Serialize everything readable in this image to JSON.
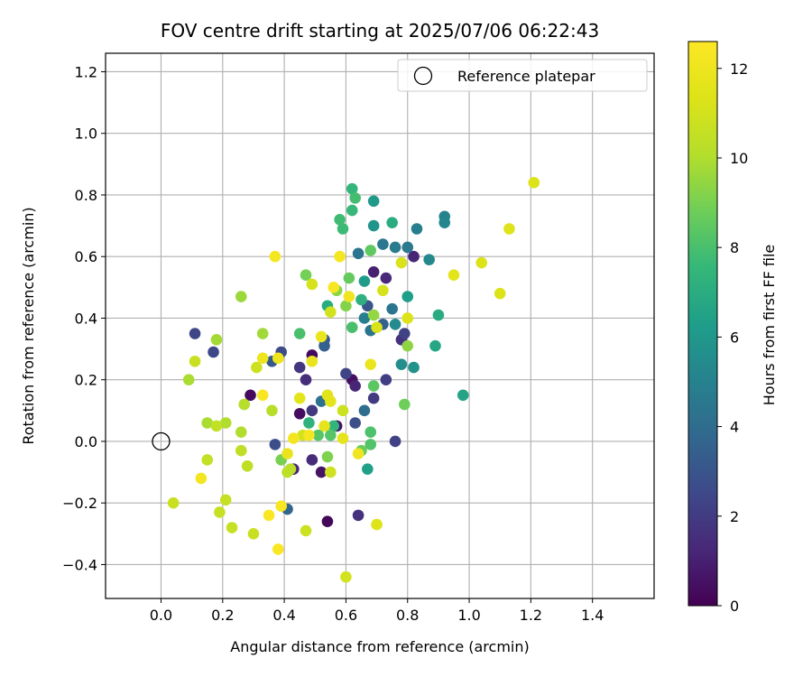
{
  "chart_data": {
    "type": "scatter",
    "title": "FOV centre drift starting at 2025/07/06 06:22:43",
    "xlabel": "Angular distance from reference (arcmin)",
    "ylabel": "Rotation from reference (arcmin)",
    "xlim": [
      -0.18,
      1.6
    ],
    "ylim": [
      -0.51,
      1.26
    ],
    "xticks": [
      0.0,
      0.2,
      0.4,
      0.6,
      0.8,
      1.0,
      1.2,
      1.4
    ],
    "xtick_labels": [
      "0.0",
      "0.2",
      "0.4",
      "0.6",
      "0.8",
      "1.0",
      "1.2",
      "1.4"
    ],
    "yticks": [
      -0.4,
      -0.2,
      0.0,
      0.2,
      0.4,
      0.6,
      0.8,
      1.0,
      1.2
    ],
    "ytick_labels": [
      "−0.4",
      "−0.2",
      "0.0",
      "0.2",
      "0.4",
      "0.6",
      "0.8",
      "1.0",
      "1.2"
    ],
    "grid": true,
    "legend": {
      "position": "top-right",
      "entries": [
        "Reference platepar"
      ]
    },
    "reference_point": {
      "x": 0.0,
      "y": 0.0,
      "marker": "open-circle",
      "label": "Reference platepar"
    },
    "colorbar": {
      "label": "Hours from first FF file",
      "range": [
        0,
        12.6
      ],
      "ticks": [
        0,
        2,
        4,
        6,
        8,
        10,
        12
      ],
      "tick_labels": [
        "0",
        "2",
        "4",
        "6",
        "8",
        "10",
        "12"
      ],
      "colormap": "viridis"
    },
    "points": [
      {
        "x": 0.29,
        "y": 0.15,
        "c": 0.3
      },
      {
        "x": 0.49,
        "y": 0.28,
        "c": 0.3
      },
      {
        "x": 0.54,
        "y": -0.26,
        "c": 0.2
      },
      {
        "x": 0.45,
        "y": 0.09,
        "c": 0.4
      },
      {
        "x": 0.62,
        "y": 0.2,
        "c": 0.5
      },
      {
        "x": 0.57,
        "y": 0.05,
        "c": 0.6
      },
      {
        "x": 0.52,
        "y": -0.1,
        "c": 0.6
      },
      {
        "x": 0.69,
        "y": 0.55,
        "c": 1.0
      },
      {
        "x": 0.82,
        "y": 0.6,
        "c": 1.2
      },
      {
        "x": 0.63,
        "y": 0.18,
        "c": 1.2
      },
      {
        "x": 0.73,
        "y": 0.53,
        "c": 1.3
      },
      {
        "x": 0.43,
        "y": -0.09,
        "c": 1.3
      },
      {
        "x": 0.49,
        "y": -0.06,
        "c": 1.4
      },
      {
        "x": 0.47,
        "y": 0.2,
        "c": 1.5
      },
      {
        "x": 0.64,
        "y": -0.24,
        "c": 1.6
      },
      {
        "x": 0.78,
        "y": 0.33,
        "c": 1.6
      },
      {
        "x": 0.45,
        "y": 0.24,
        "c": 1.8
      },
      {
        "x": 0.49,
        "y": 0.1,
        "c": 1.9
      },
      {
        "x": 0.69,
        "y": 0.14,
        "c": 2.0
      },
      {
        "x": 0.73,
        "y": 0.2,
        "c": 2.1
      },
      {
        "x": 0.76,
        "y": 0.0,
        "c": 2.2
      },
      {
        "x": 0.79,
        "y": 0.35,
        "c": 2.2
      },
      {
        "x": 0.6,
        "y": 0.22,
        "c": 2.3
      },
      {
        "x": 0.11,
        "y": 0.35,
        "c": 2.4
      },
      {
        "x": 0.17,
        "y": 0.29,
        "c": 2.5
      },
      {
        "x": 0.39,
        "y": 0.29,
        "c": 2.6
      },
      {
        "x": 0.37,
        "y": -0.01,
        "c": 2.7
      },
      {
        "x": 0.63,
        "y": 0.06,
        "c": 2.8
      },
      {
        "x": 0.67,
        "y": 0.44,
        "c": 3.0
      },
      {
        "x": 0.53,
        "y": 0.33,
        "c": 3.1
      },
      {
        "x": 0.36,
        "y": 0.26,
        "c": 3.2
      },
      {
        "x": 0.72,
        "y": 0.38,
        "c": 3.4
      },
      {
        "x": 0.53,
        "y": 0.31,
        "c": 3.5
      },
      {
        "x": 0.41,
        "y": -0.22,
        "c": 3.7
      },
      {
        "x": 0.66,
        "y": 0.1,
        "c": 4.0
      },
      {
        "x": 0.52,
        "y": 0.13,
        "c": 4.2
      },
      {
        "x": 0.68,
        "y": 0.36,
        "c": 4.3
      },
      {
        "x": 0.75,
        "y": 0.43,
        "c": 4.4
      },
      {
        "x": 0.64,
        "y": 0.61,
        "c": 4.4
      },
      {
        "x": 0.72,
        "y": 0.64,
        "c": 4.5
      },
      {
        "x": 0.8,
        "y": 0.63,
        "c": 4.6
      },
      {
        "x": 0.76,
        "y": 0.63,
        "c": 4.7
      },
      {
        "x": 0.66,
        "y": 0.4,
        "c": 4.8
      },
      {
        "x": 0.83,
        "y": 0.69,
        "c": 4.9
      },
      {
        "x": 0.92,
        "y": 0.73,
        "c": 5.1
      },
      {
        "x": 0.92,
        "y": 0.71,
        "c": 5.2
      },
      {
        "x": 0.87,
        "y": 0.59,
        "c": 5.3
      },
      {
        "x": 0.76,
        "y": 0.38,
        "c": 5.4
      },
      {
        "x": 0.78,
        "y": 0.25,
        "c": 5.6
      },
      {
        "x": 0.82,
        "y": 0.24,
        "c": 5.8
      },
      {
        "x": 0.69,
        "y": 0.7,
        "c": 5.9
      },
      {
        "x": 0.69,
        "y": 0.78,
        "c": 6.1
      },
      {
        "x": 0.66,
        "y": 0.52,
        "c": 6.2
      },
      {
        "x": 0.8,
        "y": 0.47,
        "c": 6.3
      },
      {
        "x": 0.67,
        "y": -0.09,
        "c": 6.4
      },
      {
        "x": 0.98,
        "y": 0.15,
        "c": 6.6
      },
      {
        "x": 0.89,
        "y": 0.31,
        "c": 6.7
      },
      {
        "x": 0.9,
        "y": 0.41,
        "c": 6.9
      },
      {
        "x": 0.75,
        "y": 0.71,
        "c": 7.0
      },
      {
        "x": 0.54,
        "y": 0.44,
        "c": 7.0
      },
      {
        "x": 0.65,
        "y": 0.46,
        "c": 7.2
      },
      {
        "x": 0.48,
        "y": 0.06,
        "c": 7.3
      },
      {
        "x": 0.56,
        "y": 0.05,
        "c": 7.4
      },
      {
        "x": 0.62,
        "y": 0.82,
        "c": 7.5
      },
      {
        "x": 0.62,
        "y": 0.75,
        "c": 7.6
      },
      {
        "x": 0.59,
        "y": 0.69,
        "c": 7.7
      },
      {
        "x": 0.58,
        "y": 0.72,
        "c": 7.8
      },
      {
        "x": 0.63,
        "y": 0.79,
        "c": 7.9
      },
      {
        "x": 0.45,
        "y": 0.35,
        "c": 8.0
      },
      {
        "x": 0.62,
        "y": 0.37,
        "c": 8.0
      },
      {
        "x": 0.68,
        "y": 0.03,
        "c": 8.1
      },
      {
        "x": 0.68,
        "y": -0.01,
        "c": 8.2
      },
      {
        "x": 0.55,
        "y": 0.02,
        "c": 8.3
      },
      {
        "x": 0.51,
        "y": 0.02,
        "c": 8.3
      },
      {
        "x": 0.69,
        "y": 0.18,
        "c": 8.4
      },
      {
        "x": 0.68,
        "y": 0.62,
        "c": 8.5
      },
      {
        "x": 0.61,
        "y": 0.53,
        "c": 8.6
      },
      {
        "x": 0.65,
        "y": -0.03,
        "c": 8.7
      },
      {
        "x": 0.79,
        "y": 0.12,
        "c": 8.8
      },
      {
        "x": 0.47,
        "y": 0.54,
        "c": 8.9
      },
      {
        "x": 0.39,
        "y": -0.06,
        "c": 9.0
      },
      {
        "x": 0.54,
        "y": -0.05,
        "c": 9.1
      },
      {
        "x": 0.6,
        "y": 0.44,
        "c": 9.2
      },
      {
        "x": 0.57,
        "y": 0.49,
        "c": 9.3
      },
      {
        "x": 0.8,
        "y": 0.31,
        "c": 9.4
      },
      {
        "x": 0.69,
        "y": 0.41,
        "c": 9.5
      },
      {
        "x": 0.26,
        "y": 0.47,
        "c": 9.6
      },
      {
        "x": 0.33,
        "y": 0.35,
        "c": 9.7
      },
      {
        "x": 0.18,
        "y": 0.33,
        "c": 9.8
      },
      {
        "x": 0.09,
        "y": 0.2,
        "c": 9.9
      },
      {
        "x": 0.15,
        "y": 0.06,
        "c": 9.9
      },
      {
        "x": 0.21,
        "y": 0.06,
        "c": 10.0
      },
      {
        "x": 0.26,
        "y": 0.03,
        "c": 10.0
      },
      {
        "x": 0.27,
        "y": 0.12,
        "c": 10.1
      },
      {
        "x": 0.36,
        "y": 0.1,
        "c": 10.2
      },
      {
        "x": 0.41,
        "y": -0.1,
        "c": 10.3
      },
      {
        "x": 0.42,
        "y": -0.09,
        "c": 10.3
      },
      {
        "x": 0.26,
        "y": -0.03,
        "c": 10.4
      },
      {
        "x": 0.28,
        "y": -0.08,
        "c": 10.4
      },
      {
        "x": 0.15,
        "y": -0.06,
        "c": 10.5
      },
      {
        "x": 0.18,
        "y": 0.05,
        "c": 10.5
      },
      {
        "x": 0.21,
        "y": -0.19,
        "c": 10.6
      },
      {
        "x": 0.19,
        "y": -0.23,
        "c": 10.6
      },
      {
        "x": 0.23,
        "y": -0.28,
        "c": 10.6
      },
      {
        "x": 0.3,
        "y": -0.3,
        "c": 10.7
      },
      {
        "x": 0.04,
        "y": -0.2,
        "c": 10.7
      },
      {
        "x": 0.11,
        "y": 0.26,
        "c": 10.7
      },
      {
        "x": 0.31,
        "y": 0.24,
        "c": 10.8
      },
      {
        "x": 0.47,
        "y": -0.29,
        "c": 10.8
      },
      {
        "x": 0.59,
        "y": 0.1,
        "c": 10.8
      },
      {
        "x": 0.55,
        "y": -0.1,
        "c": 10.9
      },
      {
        "x": 0.46,
        "y": 0.02,
        "c": 11.0
      },
      {
        "x": 0.6,
        "y": -0.44,
        "c": 11.0
      },
      {
        "x": 0.55,
        "y": 0.42,
        "c": 11.0
      },
      {
        "x": 0.49,
        "y": 0.51,
        "c": 11.1
      },
      {
        "x": 0.72,
        "y": 0.49,
        "c": 11.1
      },
      {
        "x": 0.7,
        "y": 0.37,
        "c": 11.2
      },
      {
        "x": 0.78,
        "y": 0.58,
        "c": 11.2
      },
      {
        "x": 1.1,
        "y": 0.48,
        "c": 11.3
      },
      {
        "x": 0.8,
        "y": 0.4,
        "c": 11.3
      },
      {
        "x": 0.7,
        "y": -0.27,
        "c": 11.4
      },
      {
        "x": 0.54,
        "y": 0.15,
        "c": 11.5
      },
      {
        "x": 0.45,
        "y": 0.14,
        "c": 11.6
      },
      {
        "x": 0.55,
        "y": 0.13,
        "c": 11.6
      },
      {
        "x": 0.59,
        "y": 0.01,
        "c": 11.7
      },
      {
        "x": 0.53,
        "y": 0.05,
        "c": 11.7
      },
      {
        "x": 0.49,
        "y": 0.26,
        "c": 11.8
      },
      {
        "x": 0.41,
        "y": -0.04,
        "c": 11.8
      },
      {
        "x": 0.68,
        "y": 0.25,
        "c": 11.9
      },
      {
        "x": 0.52,
        "y": 0.34,
        "c": 11.9
      },
      {
        "x": 0.38,
        "y": 0.27,
        "c": 12.0
      },
      {
        "x": 0.33,
        "y": 0.27,
        "c": 12.0
      },
      {
        "x": 0.61,
        "y": 0.47,
        "c": 12.1
      },
      {
        "x": 0.64,
        "y": -0.04,
        "c": 12.1
      },
      {
        "x": 0.13,
        "y": -0.12,
        "c": 12.2
      },
      {
        "x": 0.43,
        "y": 0.01,
        "c": 12.2
      },
      {
        "x": 0.48,
        "y": 0.02,
        "c": 12.3
      },
      {
        "x": 0.37,
        "y": 0.6,
        "c": 12.3
      },
      {
        "x": 0.58,
        "y": 0.6,
        "c": 12.3
      },
      {
        "x": 0.33,
        "y": 0.15,
        "c": 12.4
      },
      {
        "x": 0.39,
        "y": -0.21,
        "c": 12.4
      },
      {
        "x": 0.35,
        "y": -0.24,
        "c": 12.5
      },
      {
        "x": 0.38,
        "y": -0.35,
        "c": 12.5
      },
      {
        "x": 0.56,
        "y": 0.5,
        "c": 12.4
      },
      {
        "x": 0.95,
        "y": 0.54,
        "c": 11.6
      },
      {
        "x": 1.04,
        "y": 0.58,
        "c": 11.3
      },
      {
        "x": 1.13,
        "y": 0.69,
        "c": 11.4
      },
      {
        "x": 1.21,
        "y": 0.84,
        "c": 11.3
      }
    ]
  }
}
